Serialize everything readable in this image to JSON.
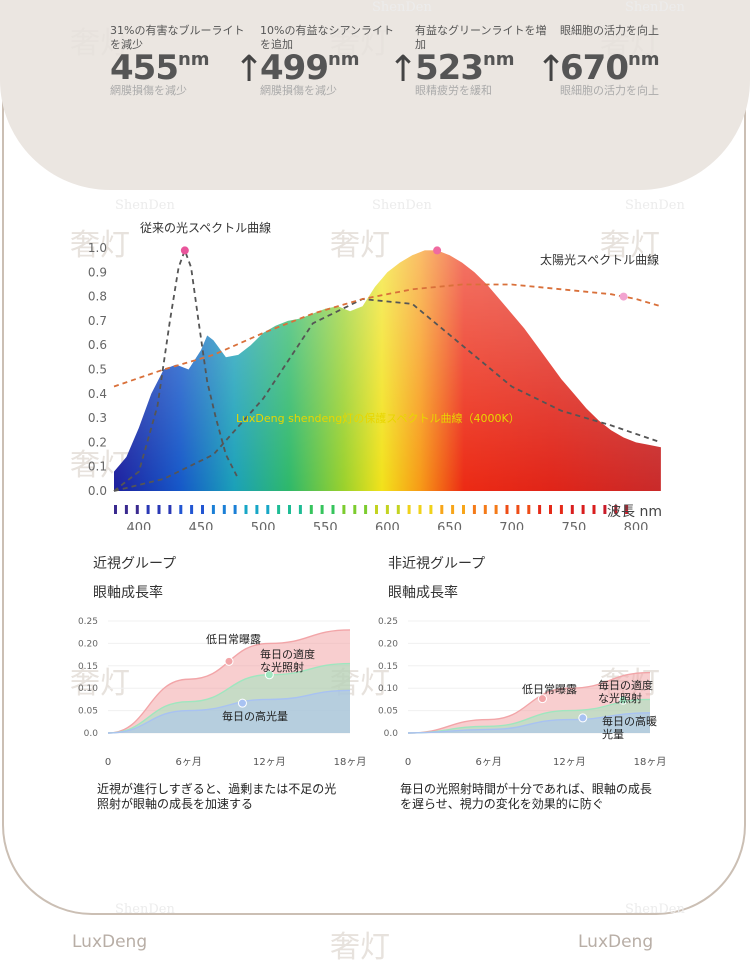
{
  "brand": {
    "watermark": "奢灯",
    "footer_left": "LuxDeng",
    "footer_right": "LuxDeng",
    "faint_mark": "ShenDen"
  },
  "stats": [
    {
      "desc": "31%の有害なブルーライトを減少",
      "value": "455",
      "unit": "nm",
      "sub": "網膜損傷を減少"
    },
    {
      "desc": "10%の有益なシアンライトを追加",
      "value": "499",
      "unit": "nm",
      "sub": "網膜損傷を減少"
    },
    {
      "desc": "有益なグリーンライトを増加",
      "value": "523",
      "unit": "nm",
      "sub": "眼精疲労を緩和"
    },
    {
      "desc": "眼細胞の活力を向上",
      "value": "670",
      "unit": "nm",
      "sub": "眼細胞の活力を向上"
    }
  ],
  "arrow_glyph": "↑",
  "left_panel": {
    "title": "近視グループ",
    "subtitle": "眼軸成長率",
    "caption": "近視が進行しすぎると、過剰または不足の光照射が眼軸の成長を加速する"
  },
  "right_panel": {
    "title": "非近視グループ",
    "subtitle": "眼軸成長率",
    "caption": "毎日の光照射時間が十分であれば、眼軸の成長を遅らせ、視力の変化を効果的に防ぐ"
  },
  "chart_data": [
    {
      "type": "line",
      "title": "",
      "xlabel": "波長 nm",
      "ylabel": "",
      "xlim": [
        380,
        800
      ],
      "ylim": [
        0,
        1.0
      ],
      "x_ticks": [
        400,
        450,
        500,
        550,
        600,
        650,
        700,
        750,
        800
      ],
      "y_ticks": [
        "0.0",
        "0.1",
        "0.2",
        "0.3",
        "0.4",
        "0.5",
        "0.6",
        "0.7",
        "0.8",
        "0.9",
        "1.0"
      ],
      "grid": false,
      "series": [
        {
          "name": "LuxDeng shendeng灯の保護スペクトル曲線（4000K）",
          "style": "rainbow-filled-area",
          "x": [
            380,
            390,
            400,
            410,
            420,
            430,
            440,
            450,
            455,
            460,
            470,
            480,
            490,
            500,
            510,
            520,
            530,
            540,
            550,
            560,
            570,
            580,
            590,
            600,
            610,
            620,
            630,
            640,
            650,
            660,
            670,
            680,
            690,
            700,
            710,
            720,
            730,
            740,
            750,
            760,
            770,
            780,
            790,
            800,
            810,
            820
          ],
          "y": [
            0.08,
            0.14,
            0.26,
            0.4,
            0.5,
            0.52,
            0.5,
            0.58,
            0.64,
            0.62,
            0.55,
            0.56,
            0.6,
            0.65,
            0.68,
            0.7,
            0.71,
            0.73,
            0.75,
            0.76,
            0.74,
            0.76,
            0.84,
            0.9,
            0.94,
            0.97,
            0.99,
            0.99,
            0.97,
            0.94,
            0.9,
            0.85,
            0.79,
            0.73,
            0.67,
            0.6,
            0.53,
            0.46,
            0.4,
            0.34,
            0.29,
            0.25,
            0.22,
            0.2,
            0.19,
            0.18
          ]
        },
        {
          "name": "従来の光スペクトル曲線",
          "style": "dark-dashed",
          "x": [
            380,
            400,
            415,
            425,
            432,
            437,
            442,
            448,
            455,
            462,
            470,
            480
          ],
          "y": [
            0.0,
            0.08,
            0.35,
            0.7,
            0.92,
            0.99,
            0.92,
            0.7,
            0.45,
            0.3,
            0.15,
            0.05
          ]
        },
        {
          "name": "dark-dashed-broad",
          "style": "dark-dashed",
          "x": [
            380,
            420,
            460,
            500,
            540,
            580,
            620,
            660,
            700,
            740,
            780,
            820
          ],
          "y": [
            0.0,
            0.05,
            0.15,
            0.38,
            0.69,
            0.79,
            0.77,
            0.6,
            0.43,
            0.33,
            0.27,
            0.2
          ]
        },
        {
          "name": "太陽光スペクトル曲線",
          "style": "orange-dashed",
          "x": [
            380,
            420,
            460,
            500,
            540,
            580,
            620,
            660,
            700,
            740,
            780,
            800,
            820
          ],
          "y": [
            0.43,
            0.5,
            0.56,
            0.65,
            0.73,
            0.79,
            0.83,
            0.85,
            0.85,
            0.83,
            0.81,
            0.79,
            0.76
          ]
        }
      ],
      "annotations": [
        {
          "text": "従来の光スペクトル曲線"
        },
        {
          "text": "太陽光スペクトル曲線"
        }
      ],
      "colors": {
        "sun_curve": "#d9703a",
        "classic_curve": "#555555",
        "label_text": "#e8d600"
      }
    },
    {
      "type": "area",
      "title": "近視グループ",
      "subtitle": "眼軸成長率",
      "categories": [
        "0",
        "6ヶ月",
        "12ヶ月",
        "18ヶ月"
      ],
      "x": [
        0,
        6,
        12,
        18
      ],
      "ylim": [
        0,
        0.25
      ],
      "y_ticks": [
        "0.25",
        "0.20",
        "0.15",
        "0.10",
        "0.05",
        "0.0"
      ],
      "series": [
        {
          "name": "低日常曝露",
          "color": "#f2a5a8",
          "values": [
            0,
            0.12,
            0.2,
            0.23
          ]
        },
        {
          "name": "毎日の適度な光照射",
          "color": "#9fe6bf",
          "values": [
            0,
            0.07,
            0.13,
            0.155
          ]
        },
        {
          "name": "毎日の高光量",
          "color": "#a8c2f2",
          "values": [
            0,
            0.05,
            0.075,
            0.095
          ]
        }
      ]
    },
    {
      "type": "area",
      "title": "非近視グループ",
      "subtitle": "眼軸成長率",
      "categories": [
        "0",
        "6ヶ月",
        "12ヶ月",
        "18ヶ月"
      ],
      "x": [
        0,
        6,
        12,
        18
      ],
      "ylim": [
        0,
        0.25
      ],
      "y_ticks": [
        "0.25",
        "0.20",
        "0.15",
        "0.10",
        "0.05",
        "0.0"
      ],
      "series": [
        {
          "name": "低日常曝露",
          "color": "#f2a5a8",
          "values": [
            0,
            0.03,
            0.1,
            0.135
          ]
        },
        {
          "name": "毎日の適度な光照射",
          "color": "#9fe6bf",
          "values": [
            0,
            0.015,
            0.05,
            0.075
          ]
        },
        {
          "name": "毎日の高暖光量",
          "color": "#a8c2f2",
          "values": [
            0,
            0.008,
            0.03,
            0.045
          ]
        }
      ]
    }
  ]
}
